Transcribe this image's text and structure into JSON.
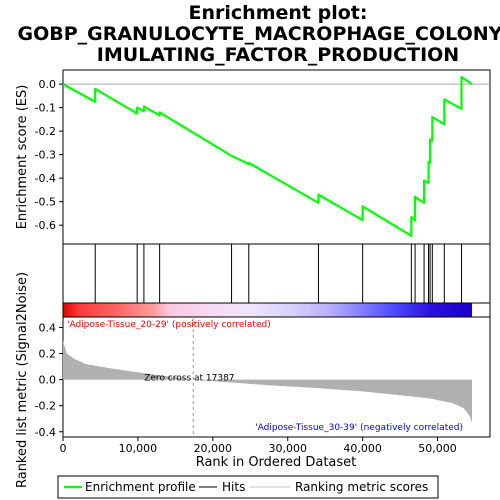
{
  "chart_data": {
    "type": "line",
    "title_lines": [
      "Enrichment plot:",
      "GOBP_GRANULOCYTE_MACROPHAGE_COLONY_ST",
      "IMULATING_FACTOR_PRODUCTION"
    ],
    "es_panel": {
      "ylabel": "Enrichment score (ES)",
      "ylim": [
        -0.68,
        0.06
      ],
      "yticks": [
        0.0,
        -0.1,
        -0.2,
        -0.3,
        -0.4,
        -0.5,
        -0.6
      ],
      "ytick_labels": [
        "0.0",
        "-0.1",
        "-0.2",
        "-0.3",
        "-0.4",
        "-0.5",
        "-0.6"
      ],
      "series": [
        {
          "color": "#00ff00",
          "points": [
            [
              0,
              0.0
            ],
            [
              4300,
              -0.075
            ],
            [
              4300,
              -0.02
            ],
            [
              9900,
              -0.125
            ],
            [
              9900,
              -0.1
            ],
            [
              10800,
              -0.115
            ],
            [
              10800,
              -0.095
            ],
            [
              12900,
              -0.133
            ],
            [
              12900,
              -0.12
            ],
            [
              22500,
              -0.305
            ],
            [
              24800,
              -0.34
            ],
            [
              24800,
              -0.335
            ],
            [
              34100,
              -0.505
            ],
            [
              34100,
              -0.47
            ],
            [
              40000,
              -0.578
            ],
            [
              40000,
              -0.52
            ],
            [
              46500,
              -0.645
            ],
            [
              46500,
              -0.565
            ],
            [
              47000,
              -0.58
            ],
            [
              47000,
              -0.48
            ],
            [
              48200,
              -0.505
            ],
            [
              48200,
              -0.41
            ],
            [
              48800,
              -0.42
            ],
            [
              48800,
              -0.33
            ],
            [
              49000,
              -0.335
            ],
            [
              49000,
              -0.235
            ],
            [
              49300,
              -0.24
            ],
            [
              49300,
              -0.14
            ],
            [
              50900,
              -0.17
            ],
            [
              50900,
              -0.065
            ],
            [
              53200,
              -0.105
            ],
            [
              53200,
              0.03
            ],
            [
              54600,
              0.0
            ]
          ]
        }
      ]
    },
    "hits": [
      4300,
      9900,
      10800,
      12900,
      22500,
      24800,
      34100,
      40000,
      46500,
      47000,
      48200,
      48800,
      49000,
      49300,
      50900,
      53200
    ],
    "metric_panel": {
      "ylabel": "Ranked list metric (Signal2Noise)",
      "ylim": [
        -0.44,
        0.48
      ],
      "yticks": [
        0.4,
        0.2,
        0.0,
        -0.2,
        -0.4
      ],
      "ytick_labels": [
        "0.4",
        "0.2",
        "0.0",
        "-0.2",
        "-0.4"
      ],
      "fill_color": "#b0b0b0",
      "curve": [
        [
          0,
          0.3
        ],
        [
          500,
          0.2
        ],
        [
          1500,
          0.16
        ],
        [
          3000,
          0.12
        ],
        [
          6000,
          0.09
        ],
        [
          10000,
          0.055
        ],
        [
          14000,
          0.025
        ],
        [
          17387,
          0.0
        ],
        [
          22000,
          -0.02
        ],
        [
          28000,
          -0.045
        ],
        [
          34000,
          -0.065
        ],
        [
          40000,
          -0.09
        ],
        [
          45000,
          -0.12
        ],
        [
          49000,
          -0.145
        ],
        [
          52000,
          -0.18
        ],
        [
          53500,
          -0.22
        ],
        [
          54300,
          -0.28
        ],
        [
          54600,
          -0.33
        ]
      ],
      "zero_cross_label": "Zero cross at 17387",
      "zero_cross_x": 17387,
      "pos_label": "'Adipose-Tissue_20-29' (positively correlated)",
      "neg_label": "'Adipose-Tissue_30-39' (negatively correlated)",
      "pos_color": "#ff0000",
      "neg_color": "#0000ff"
    },
    "xaxis": {
      "xlabel": "Rank in Ordered Dataset",
      "xlim": [
        0,
        57000
      ],
      "xticks": [
        0,
        10000,
        20000,
        30000,
        40000,
        50000
      ],
      "xtick_labels": [
        "0",
        "10,000",
        "20,000",
        "30,000",
        "40,000",
        "50,000"
      ],
      "n_genes": 54600
    },
    "legend": {
      "items": [
        {
          "label": "Enrichment profile",
          "color": "#00ff00"
        },
        {
          "label": "Hits",
          "color": "#000000"
        },
        {
          "label": "Ranking metric scores",
          "color": "#c0c0c0"
        }
      ]
    }
  }
}
